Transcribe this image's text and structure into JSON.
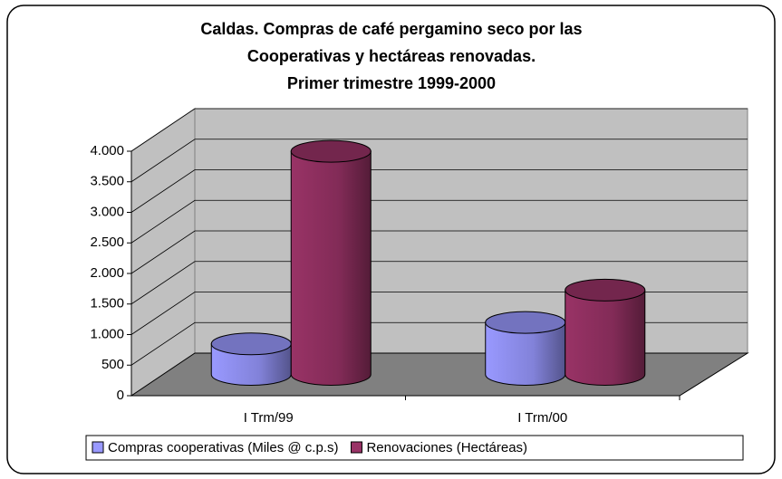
{
  "chart_data": {
    "type": "bar3d",
    "title": [
      "Caldas. Compras de café pergamino seco por las",
      "Cooperativas y hectáreas renovadas.",
      "Primer trimestre 1999-2000"
    ],
    "categories": [
      "I Trm/99",
      "I Trm/00"
    ],
    "series": [
      {
        "name": "Compras cooperativas (Miles @ c.p.s)",
        "color": "#9999ff",
        "values": [
          500,
          850
        ]
      },
      {
        "name": "Renovaciones (Hectáreas)",
        "color": "#993366",
        "values": [
          3650,
          1380
        ]
      }
    ],
    "ylim": [
      0,
      4000
    ],
    "yticks": [
      0,
      500,
      {
        "value": 1000,
        "label": "1.000"
      },
      {
        "value": 1500,
        "label": "1.500"
      },
      {
        "value": 2000,
        "label": "2.000"
      },
      {
        "value": 2500,
        "label": "2.500"
      },
      {
        "value": 3000,
        "label": "3.000"
      },
      {
        "value": 3500,
        "label": "3.500"
      },
      {
        "value": 4000,
        "label": "4.000"
      }
    ],
    "grid": true,
    "legend": "bottom"
  }
}
